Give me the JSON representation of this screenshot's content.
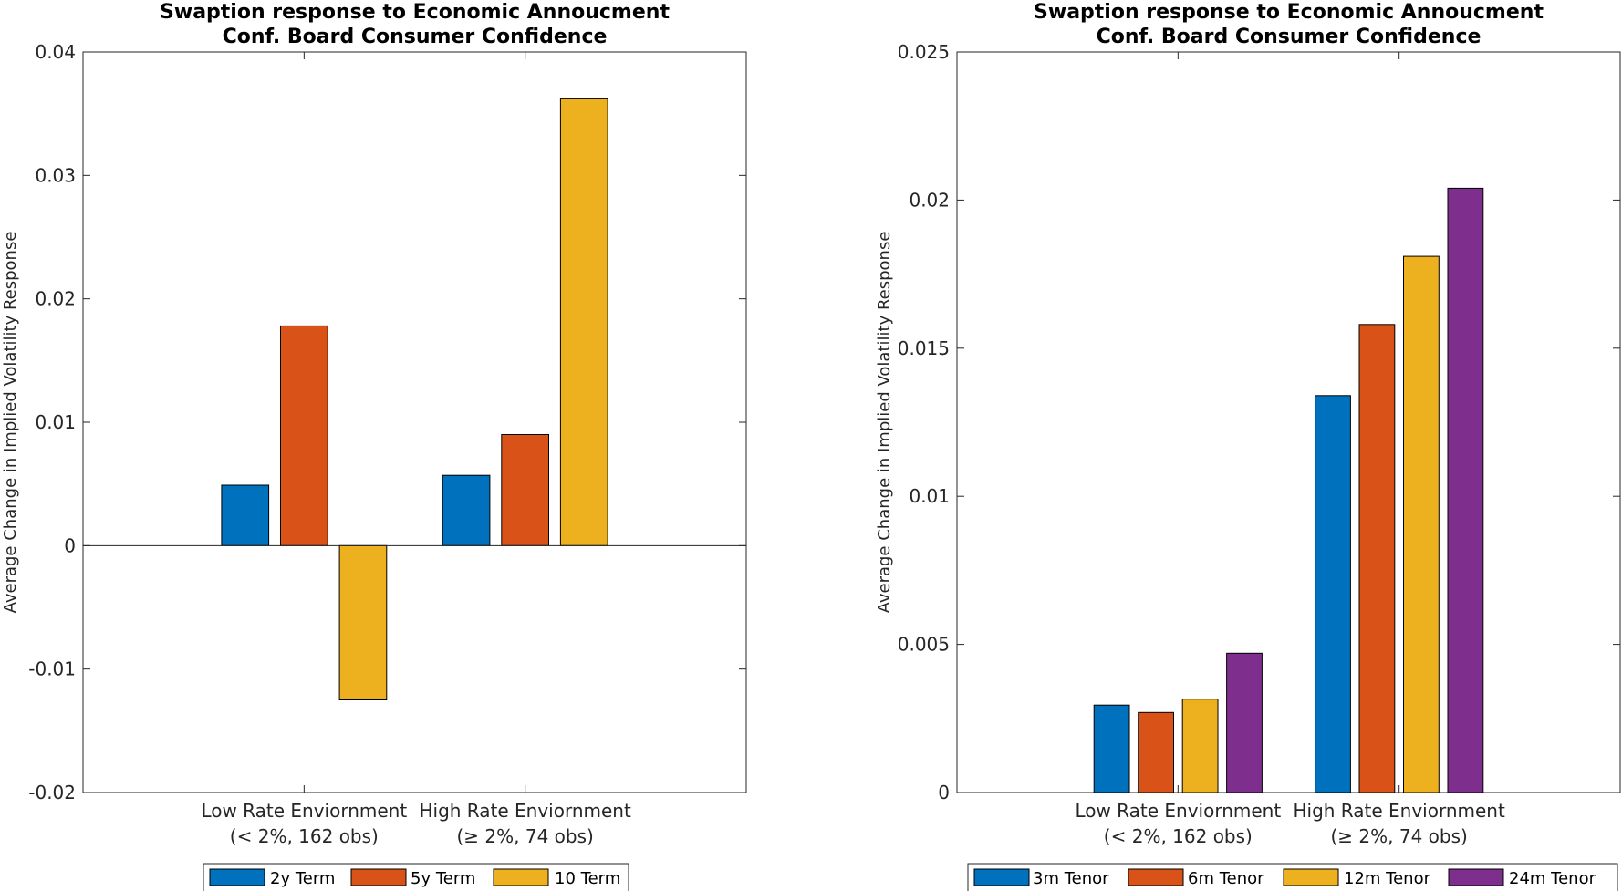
{
  "chart_data": [
    {
      "type": "bar",
      "title": [
        "Swaption response to Economic Annoucment",
        "Conf. Board Consumer Confidence"
      ],
      "ylabel": "Average Change in Implied Volatility Response",
      "xlabel": "",
      "categories": [
        [
          "Low Rate Enviornment",
          "(< 2%, 162 obs)"
        ],
        [
          "High Rate Enviornment",
          "(≥ 2%, 74 obs)"
        ]
      ],
      "ylim": [
        -0.02,
        0.04
      ],
      "yticks": [
        -0.02,
        -0.01,
        0,
        0.01,
        0.02,
        0.03,
        0.04
      ],
      "ytick_labels": [
        "-0.02",
        "-0.01",
        "0",
        "0.01",
        "0.02",
        "0.03",
        "0.04"
      ],
      "grid": false,
      "legend_position": "bottom-outside",
      "legend_orientation": "horizontal",
      "series": [
        {
          "name": "2y Term",
          "color": "#0072BD",
          "values": [
            0.0049,
            0.0057
          ]
        },
        {
          "name": "5y Term",
          "color": "#D95319",
          "values": [
            0.0178,
            0.009
          ]
        },
        {
          "name": "10 Term",
          "color": "#EDB120",
          "values": [
            -0.0125,
            0.0362
          ]
        }
      ]
    },
    {
      "type": "bar",
      "title": [
        "Swaption response to Economic Annoucment",
        "Conf. Board Consumer Confidence"
      ],
      "ylabel": "Average Change in Implied Volatility Response",
      "xlabel": "",
      "categories": [
        [
          "Low Rate Enviornment",
          "(< 2%, 162 obs)"
        ],
        [
          "High Rate Enviornment",
          "(≥ 2%, 74 obs)"
        ]
      ],
      "ylim": [
        0,
        0.025
      ],
      "yticks": [
        0,
        0.005,
        0.01,
        0.015,
        0.02,
        0.025
      ],
      "ytick_labels": [
        "0",
        "0.005",
        "0.01",
        "0.015",
        "0.02",
        "0.025"
      ],
      "grid": false,
      "legend_position": "bottom-outside",
      "legend_orientation": "horizontal",
      "series": [
        {
          "name": "3m Tenor",
          "color": "#0072BD",
          "values": [
            0.00295,
            0.0134
          ]
        },
        {
          "name": "6m Tenor",
          "color": "#D95319",
          "values": [
            0.0027,
            0.0158
          ]
        },
        {
          "name": "12m Tenor",
          "color": "#EDB120",
          "values": [
            0.00315,
            0.0181
          ]
        },
        {
          "name": "24m Tenor",
          "color": "#7E2F8E",
          "values": [
            0.0047,
            0.0204
          ]
        }
      ]
    }
  ]
}
